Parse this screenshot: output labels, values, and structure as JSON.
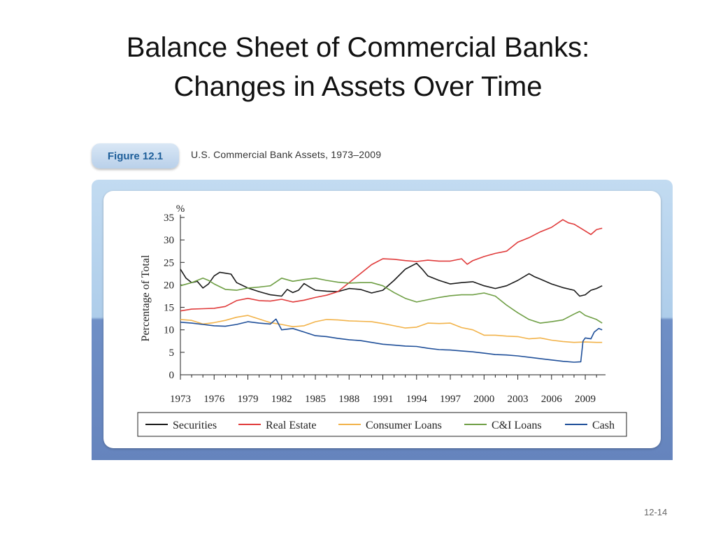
{
  "slide": {
    "title_line1": "Balance Sheet of Commercial Banks:",
    "title_line2": "Changes in Assets Over Time",
    "page_number": "12-14"
  },
  "figure": {
    "badge": "Figure 12.1",
    "caption": "U.S. Commercial Bank Assets, 1973–2009"
  },
  "chart_data": {
    "type": "line",
    "unit_label": "%",
    "ylabel": "Percentage of Total",
    "xlim": [
      1973,
      2010.8
    ],
    "ylim": [
      0,
      35
    ],
    "x_ticks": [
      1973,
      1976,
      1979,
      1982,
      1985,
      1988,
      1991,
      1994,
      1997,
      2000,
      2003,
      2006,
      2009
    ],
    "y_ticks": [
      0,
      5,
      10,
      15,
      20,
      25,
      30,
      35
    ],
    "grid": false,
    "legend_position": "bottom",
    "series": [
      {
        "name": "Securities",
        "color": "#1a1a1a",
        "points": [
          [
            1973,
            23.5
          ],
          [
            1973.5,
            21.5
          ],
          [
            1974,
            20.5
          ],
          [
            1974.5,
            20.8
          ],
          [
            1975,
            19.3
          ],
          [
            1975.5,
            20.2
          ],
          [
            1976,
            22
          ],
          [
            1976.5,
            22.8
          ],
          [
            1977,
            22.6
          ],
          [
            1977.5,
            22.4
          ],
          [
            1978,
            20.5
          ],
          [
            1979,
            19.3
          ],
          [
            1980,
            18.5
          ],
          [
            1981,
            17.8
          ],
          [
            1982,
            17.5
          ],
          [
            1982.5,
            19
          ],
          [
            1983,
            18.3
          ],
          [
            1983.5,
            18.8
          ],
          [
            1984,
            20.3
          ],
          [
            1984.5,
            19.5
          ],
          [
            1985,
            18.8
          ],
          [
            1986,
            18.6
          ],
          [
            1987,
            18.5
          ],
          [
            1988,
            19.2
          ],
          [
            1989,
            19
          ],
          [
            1990,
            18.2
          ],
          [
            1991,
            18.8
          ],
          [
            1992,
            21
          ],
          [
            1993,
            23.5
          ],
          [
            1994,
            24.8
          ],
          [
            1994.5,
            23.5
          ],
          [
            1995,
            22
          ],
          [
            1996,
            21
          ],
          [
            1997,
            20.2
          ],
          [
            1998,
            20.5
          ],
          [
            1999,
            20.7
          ],
          [
            2000,
            19.8
          ],
          [
            2001,
            19.2
          ],
          [
            2002,
            19.8
          ],
          [
            2003,
            21
          ],
          [
            2004,
            22.5
          ],
          [
            2004.5,
            21.8
          ],
          [
            2005,
            21.3
          ],
          [
            2006,
            20.2
          ],
          [
            2007,
            19.4
          ],
          [
            2008,
            18.8
          ],
          [
            2008.5,
            17.5
          ],
          [
            2009,
            17.8
          ],
          [
            2009.5,
            18.8
          ],
          [
            2010,
            19.2
          ],
          [
            2010.5,
            19.8
          ]
        ]
      },
      {
        "name": "Real Estate",
        "color": "#e03b3b",
        "points": [
          [
            1973,
            14.2
          ],
          [
            1974,
            14.6
          ],
          [
            1975,
            14.7
          ],
          [
            1976,
            14.8
          ],
          [
            1977,
            15.2
          ],
          [
            1978,
            16.5
          ],
          [
            1979,
            17
          ],
          [
            1980,
            16.5
          ],
          [
            1981,
            16.4
          ],
          [
            1982,
            16.8
          ],
          [
            1983,
            16.2
          ],
          [
            1984,
            16.6
          ],
          [
            1985,
            17.2
          ],
          [
            1986,
            17.7
          ],
          [
            1987,
            18.5
          ],
          [
            1988,
            20.5
          ],
          [
            1989,
            22.5
          ],
          [
            1990,
            24.5
          ],
          [
            1991,
            25.8
          ],
          [
            1992,
            25.7
          ],
          [
            1993,
            25.4
          ],
          [
            1994,
            25.2
          ],
          [
            1995,
            25.5
          ],
          [
            1996,
            25.3
          ],
          [
            1997,
            25.3
          ],
          [
            1998,
            25.8
          ],
          [
            1998.5,
            24.6
          ],
          [
            1999,
            25.4
          ],
          [
            2000,
            26.3
          ],
          [
            2001,
            27
          ],
          [
            2002,
            27.5
          ],
          [
            2003,
            29.5
          ],
          [
            2004,
            30.5
          ],
          [
            2005,
            31.8
          ],
          [
            2006,
            32.8
          ],
          [
            2007,
            34.5
          ],
          [
            2007.5,
            33.8
          ],
          [
            2008,
            33.5
          ],
          [
            2009,
            32
          ],
          [
            2009.5,
            31.2
          ],
          [
            2010,
            32.3
          ],
          [
            2010.5,
            32.6
          ]
        ]
      },
      {
        "name": "Consumer Loans",
        "color": "#f2b34a",
        "points": [
          [
            1973,
            12.3
          ],
          [
            1974,
            12.1
          ],
          [
            1975,
            11.3
          ],
          [
            1976,
            11.6
          ],
          [
            1977,
            12.1
          ],
          [
            1978,
            12.8
          ],
          [
            1979,
            13.2
          ],
          [
            1980,
            12.4
          ],
          [
            1981,
            11.6
          ],
          [
            1982,
            11.2
          ],
          [
            1983,
            10.7
          ],
          [
            1984,
            10.9
          ],
          [
            1985,
            11.8
          ],
          [
            1986,
            12.3
          ],
          [
            1987,
            12.2
          ],
          [
            1988,
            12
          ],
          [
            1989,
            11.9
          ],
          [
            1990,
            11.8
          ],
          [
            1991,
            11.4
          ],
          [
            1992,
            10.9
          ],
          [
            1993,
            10.4
          ],
          [
            1994,
            10.6
          ],
          [
            1995,
            11.5
          ],
          [
            1996,
            11.4
          ],
          [
            1997,
            11.5
          ],
          [
            1998,
            10.5
          ],
          [
            1999,
            10
          ],
          [
            2000,
            8.8
          ],
          [
            2001,
            8.8
          ],
          [
            2002,
            8.6
          ],
          [
            2003,
            8.5
          ],
          [
            2004,
            8
          ],
          [
            2005,
            8.2
          ],
          [
            2006,
            7.7
          ],
          [
            2007,
            7.4
          ],
          [
            2008,
            7.2
          ],
          [
            2009,
            7.3
          ],
          [
            2010,
            7.2
          ],
          [
            2010.5,
            7.2
          ]
        ]
      },
      {
        "name": "C&I Loans",
        "color": "#6f9f45",
        "points": [
          [
            1973,
            19.8
          ],
          [
            1974,
            20.5
          ],
          [
            1975,
            21.5
          ],
          [
            1975.5,
            21
          ],
          [
            1976,
            20.2
          ],
          [
            1977,
            19
          ],
          [
            1978,
            18.8
          ],
          [
            1979,
            19.3
          ],
          [
            1980,
            19.5
          ],
          [
            1981,
            19.8
          ],
          [
            1982,
            21.5
          ],
          [
            1983,
            20.8
          ],
          [
            1984,
            21.2
          ],
          [
            1985,
            21.5
          ],
          [
            1986,
            21
          ],
          [
            1987,
            20.6
          ],
          [
            1988,
            20.4
          ],
          [
            1989,
            20.5
          ],
          [
            1990,
            20.5
          ],
          [
            1991,
            19.8
          ],
          [
            1992,
            18.3
          ],
          [
            1993,
            17
          ],
          [
            1994,
            16.2
          ],
          [
            1995,
            16.7
          ],
          [
            1996,
            17.2
          ],
          [
            1997,
            17.6
          ],
          [
            1998,
            17.8
          ],
          [
            1999,
            17.8
          ],
          [
            2000,
            18.2
          ],
          [
            2001,
            17.5
          ],
          [
            2002,
            15.5
          ],
          [
            2003,
            13.8
          ],
          [
            2004,
            12.3
          ],
          [
            2005,
            11.5
          ],
          [
            2006,
            11.8
          ],
          [
            2007,
            12.2
          ],
          [
            2008,
            13.5
          ],
          [
            2008.5,
            14.1
          ],
          [
            2009,
            13.2
          ],
          [
            2010,
            12.3
          ],
          [
            2010.5,
            11.5
          ]
        ]
      },
      {
        "name": "Cash",
        "color": "#1f4f99",
        "points": [
          [
            1973,
            11.7
          ],
          [
            1974,
            11.5
          ],
          [
            1975,
            11.2
          ],
          [
            1976,
            10.9
          ],
          [
            1977,
            10.8
          ],
          [
            1978,
            11.2
          ],
          [
            1979,
            11.8
          ],
          [
            1980,
            11.5
          ],
          [
            1981,
            11.3
          ],
          [
            1981.5,
            12.4
          ],
          [
            1982,
            10
          ],
          [
            1983,
            10.3
          ],
          [
            1984,
            9.5
          ],
          [
            1985,
            8.7
          ],
          [
            1986,
            8.5
          ],
          [
            1987,
            8.1
          ],
          [
            1988,
            7.8
          ],
          [
            1989,
            7.6
          ],
          [
            1990,
            7.2
          ],
          [
            1991,
            6.8
          ],
          [
            1992,
            6.6
          ],
          [
            1993,
            6.4
          ],
          [
            1994,
            6.3
          ],
          [
            1995,
            5.9
          ],
          [
            1996,
            5.6
          ],
          [
            1997,
            5.5
          ],
          [
            1998,
            5.3
          ],
          [
            1999,
            5.1
          ],
          [
            2000,
            4.8
          ],
          [
            2001,
            4.5
          ],
          [
            2002,
            4.4
          ],
          [
            2003,
            4.2
          ],
          [
            2004,
            3.9
          ],
          [
            2005,
            3.6
          ],
          [
            2006,
            3.3
          ],
          [
            2007,
            3
          ],
          [
            2008,
            2.8
          ],
          [
            2008.6,
            2.9
          ],
          [
            2008.8,
            7.5
          ],
          [
            2009,
            8.2
          ],
          [
            2009.5,
            8
          ],
          [
            2009.8,
            9.5
          ],
          [
            2010.2,
            10.3
          ],
          [
            2010.5,
            10
          ]
        ]
      }
    ]
  }
}
